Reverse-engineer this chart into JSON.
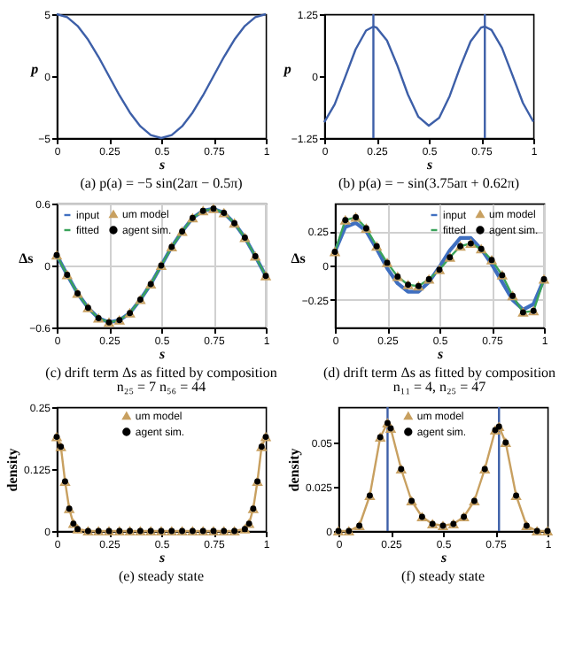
{
  "chart_data": [
    {
      "type": "line",
      "title": "(a) p(a) = −5 sin(2aπ − 0.5π)",
      "xlabel": "s",
      "ylabel": "p",
      "x": [
        0,
        0.05,
        0.1,
        0.15,
        0.2,
        0.25,
        0.3,
        0.35,
        0.4,
        0.45,
        0.5,
        0.55,
        0.6,
        0.65,
        0.7,
        0.75,
        0.8,
        0.85,
        0.9,
        0.95,
        1
      ],
      "series": [
        {
          "color": "#3d5fa8",
          "values": [
            5,
            4.76,
            4.05,
            2.94,
            1.55,
            0,
            -1.55,
            -2.94,
            -4.05,
            -4.76,
            -5,
            -4.76,
            -4.05,
            -2.94,
            -1.55,
            0,
            1.55,
            2.94,
            4.05,
            4.76,
            5
          ]
        }
      ],
      "xlim": [
        0,
        1
      ],
      "ylim": [
        -5,
        5
      ],
      "xticks": [
        0,
        0.25,
        0.5,
        0.75,
        1
      ],
      "yticks": [
        -5,
        0,
        5
      ],
      "marker": "none"
    },
    {
      "type": "line",
      "title": "(b) p(a) = − sin(3.75aπ + 0.62π)",
      "xlabel": "s",
      "ylabel": "p",
      "x": [
        0,
        0.05,
        0.1,
        0.15,
        0.2,
        0.235,
        0.25,
        0.3,
        0.35,
        0.4,
        0.45,
        0.5,
        0.55,
        0.6,
        0.65,
        0.7,
        0.75,
        0.768,
        0.8,
        0.85,
        0.9,
        0.95,
        1
      ],
      "series": [
        {
          "color": "#3d5fa8",
          "values": [
            -0.93,
            -0.57,
            -0.02,
            0.54,
            0.92,
            1.0,
            0.98,
            0.72,
            0.21,
            -0.37,
            -0.82,
            -1.0,
            -0.84,
            -0.4,
            0.18,
            0.7,
            0.98,
            1.0,
            0.93,
            0.57,
            0.02,
            -0.54,
            -0.92
          ]
        }
      ],
      "ref_lines": [
        {
          "axis": "x",
          "value": 0.235,
          "color": "#3d5fa8"
        },
        {
          "axis": "x",
          "value": 0.768,
          "color": "#3d5fa8"
        }
      ],
      "xlim": [
        0,
        1
      ],
      "ylim": [
        -1.25,
        1.25
      ],
      "xticks": [
        0,
        0.25,
        0.5,
        0.75,
        1
      ],
      "yticks": [
        -1.25,
        0,
        1.25
      ],
      "marker": "none"
    },
    {
      "type": "line",
      "title": "(c) drift term Δs as fitted by composition",
      "subtitle": "n₂₅ = 7 n₅₆ = 44",
      "xlabel": "s",
      "ylabel": "Δs",
      "x": [
        0,
        0.05,
        0.1,
        0.15,
        0.2,
        0.25,
        0.3,
        0.35,
        0.4,
        0.45,
        0.5,
        0.55,
        0.6,
        0.65,
        0.7,
        0.75,
        0.8,
        0.85,
        0.9,
        0.95,
        1
      ],
      "series": [
        {
          "name": "input",
          "color": "#3f6fc0",
          "type": "line",
          "marker": "none",
          "values": [
            0.1,
            -0.09,
            -0.27,
            -0.41,
            -0.51,
            -0.55,
            -0.53,
            -0.46,
            -0.33,
            -0.18,
            0,
            0.18,
            0.33,
            0.46,
            0.53,
            0.55,
            0.51,
            0.41,
            0.27,
            0.09,
            -0.1
          ]
        },
        {
          "name": "fitted",
          "color": "#3aa35a",
          "type": "line",
          "marker": "none",
          "values": [
            0.1,
            -0.09,
            -0.27,
            -0.41,
            -0.51,
            -0.55,
            -0.53,
            -0.46,
            -0.33,
            -0.18,
            0,
            0.18,
            0.33,
            0.46,
            0.53,
            0.55,
            0.51,
            0.41,
            0.27,
            0.09,
            -0.1
          ]
        },
        {
          "name": "um model",
          "color": "#c8a060",
          "type": "scatter",
          "marker": "triangle",
          "values": [
            0.1,
            -0.09,
            -0.27,
            -0.41,
            -0.51,
            -0.55,
            -0.53,
            -0.46,
            -0.33,
            -0.18,
            0,
            0.18,
            0.33,
            0.46,
            0.53,
            0.55,
            0.51,
            0.41,
            0.27,
            0.09,
            -0.1
          ]
        },
        {
          "name": "agent sim.",
          "color": "#000000",
          "type": "scatter",
          "marker": "circle",
          "values": [
            0.1,
            -0.09,
            -0.27,
            -0.41,
            -0.51,
            -0.55,
            -0.53,
            -0.46,
            -0.33,
            -0.18,
            0,
            0.18,
            0.33,
            0.46,
            0.53,
            0.55,
            0.51,
            0.41,
            0.27,
            0.09,
            -0.1
          ]
        }
      ],
      "xlim": [
        0,
        1
      ],
      "ylim": [
        -0.6,
        0.6
      ],
      "xticks": [
        0,
        0.25,
        0.5,
        0.75,
        1
      ],
      "yticks": [
        -0.6,
        0,
        0.6
      ],
      "grid": true,
      "legend": "top left"
    },
    {
      "type": "line",
      "title": "(d) drift term Δs as fitted by composition",
      "subtitle": "n₁₁ = 4, n₂₅ = 47",
      "xlabel": "s",
      "ylabel": "Δs",
      "x": [
        0,
        0.05,
        0.1,
        0.15,
        0.2,
        0.25,
        0.3,
        0.35,
        0.4,
        0.45,
        0.5,
        0.55,
        0.6,
        0.65,
        0.7,
        0.75,
        0.8,
        0.85,
        0.9,
        0.95,
        1
      ],
      "series": [
        {
          "name": "input",
          "color": "#3f6fc0",
          "type": "line",
          "marker": "none",
          "values": [
            0.1,
            0.28,
            0.31,
            0.25,
            0.12,
            -0.02,
            -0.13,
            -0.19,
            -0.19,
            -0.12,
            -0.01,
            0.11,
            0.2,
            0.2,
            0.12,
            0.01,
            -0.12,
            -0.25,
            -0.32,
            -0.28,
            -0.1
          ]
        },
        {
          "name": "fitted",
          "color": "#3aa35a",
          "type": "line",
          "marker": "none",
          "values": [
            0.1,
            0.33,
            0.35,
            0.27,
            0.14,
            0.02,
            -0.08,
            -0.14,
            -0.15,
            -0.1,
            -0.03,
            0.06,
            0.14,
            0.16,
            0.12,
            0.04,
            -0.07,
            -0.22,
            -0.34,
            -0.33,
            -0.1
          ]
        },
        {
          "name": "um model",
          "color": "#c8a060",
          "type": "scatter",
          "marker": "triangle",
          "values": [
            0.1,
            0.33,
            0.35,
            0.27,
            0.14,
            0.02,
            -0.08,
            -0.14,
            -0.15,
            -0.1,
            -0.03,
            0.06,
            0.14,
            0.16,
            0.12,
            0.04,
            -0.07,
            -0.22,
            -0.34,
            -0.33,
            -0.1
          ]
        },
        {
          "name": "agent sim.",
          "color": "#000000",
          "type": "scatter",
          "marker": "circle",
          "values": [
            0.1,
            0.33,
            0.35,
            0.27,
            0.14,
            0.02,
            -0.08,
            -0.14,
            -0.15,
            -0.1,
            -0.03,
            0.06,
            0.14,
            0.16,
            0.12,
            0.04,
            -0.07,
            -0.22,
            -0.34,
            -0.33,
            -0.1
          ]
        }
      ],
      "xlim": [
        0,
        1
      ],
      "ylim": [
        -0.45,
        0.45
      ],
      "xticks": [
        0,
        0.25,
        0.5,
        0.75,
        1
      ],
      "yticks": [
        -0.25,
        0,
        0.25
      ],
      "grid": true,
      "legend": "top right"
    },
    {
      "type": "line",
      "title": "(e) steady state",
      "xlabel": "s",
      "ylabel": "density",
      "x": [
        0,
        0.02,
        0.04,
        0.06,
        0.08,
        0.1,
        0.15,
        0.2,
        0.25,
        0.3,
        0.35,
        0.4,
        0.45,
        0.5,
        0.55,
        0.6,
        0.65,
        0.7,
        0.75,
        0.8,
        0.85,
        0.9,
        0.92,
        0.94,
        0.96,
        0.98,
        1
      ],
      "series": [
        {
          "name": "um model",
          "color": "#c8a060",
          "type": "line",
          "marker": "triangle",
          "values": [
            0.19,
            0.17,
            0.1,
            0.045,
            0.015,
            0.004,
            0,
            0,
            0,
            0,
            0,
            0,
            0,
            0,
            0,
            0,
            0,
            0,
            0,
            0,
            0,
            0.004,
            0.015,
            0.045,
            0.1,
            0.17,
            0.19
          ]
        },
        {
          "name": "agent sim.",
          "color": "#000000",
          "type": "scatter",
          "marker": "circle",
          "values": [
            0.19,
            0.17,
            0.1,
            0.045,
            0.015,
            0.004,
            0,
            0,
            0,
            0,
            0,
            0,
            0,
            0,
            0,
            0,
            0,
            0,
            0,
            0,
            0,
            0.004,
            0.015,
            0.045,
            0.1,
            0.17,
            0.19
          ]
        }
      ],
      "xlim": [
        0,
        1
      ],
      "ylim": [
        0,
        0.25
      ],
      "xticks": [
        0,
        0.25,
        0.5,
        0.75,
        1
      ],
      "yticks": [
        0,
        0.125,
        0.25
      ],
      "legend": "top"
    },
    {
      "type": "line",
      "title": "(f) steady state",
      "xlabel": "s",
      "ylabel": "density",
      "x": [
        0,
        0.05,
        0.1,
        0.15,
        0.2,
        0.235,
        0.25,
        0.3,
        0.35,
        0.4,
        0.45,
        0.5,
        0.55,
        0.6,
        0.65,
        0.7,
        0.75,
        0.768,
        0.8,
        0.85,
        0.9,
        0.95,
        1
      ],
      "series": [
        {
          "name": "um model",
          "color": "#c8a060",
          "type": "line",
          "marker": "triangle",
          "values": [
            0,
            0,
            0.003,
            0.02,
            0.053,
            0.061,
            0.058,
            0.035,
            0.017,
            0.008,
            0.004,
            0.003,
            0.004,
            0.008,
            0.017,
            0.035,
            0.057,
            0.059,
            0.05,
            0.02,
            0.003,
            0,
            0
          ]
        },
        {
          "name": "agent sim.",
          "color": "#000000",
          "type": "scatter",
          "marker": "circle",
          "values": [
            0,
            0,
            0.003,
            0.02,
            0.053,
            0.061,
            0.058,
            0.035,
            0.017,
            0.008,
            0.004,
            0.003,
            0.004,
            0.008,
            0.017,
            0.035,
            0.057,
            0.059,
            0.05,
            0.02,
            0.003,
            0,
            0
          ]
        }
      ],
      "ref_lines": [
        {
          "axis": "x",
          "value": 0.235,
          "color": "#3d5fa8"
        },
        {
          "axis": "x",
          "value": 0.768,
          "color": "#3d5fa8"
        }
      ],
      "xlim": [
        0,
        1
      ],
      "ylim": [
        0,
        0.07
      ],
      "xticks": [
        0,
        0.25,
        0.5,
        0.75,
        1
      ],
      "yticks": [
        0,
        0.025,
        0.05
      ],
      "legend": "top"
    }
  ]
}
